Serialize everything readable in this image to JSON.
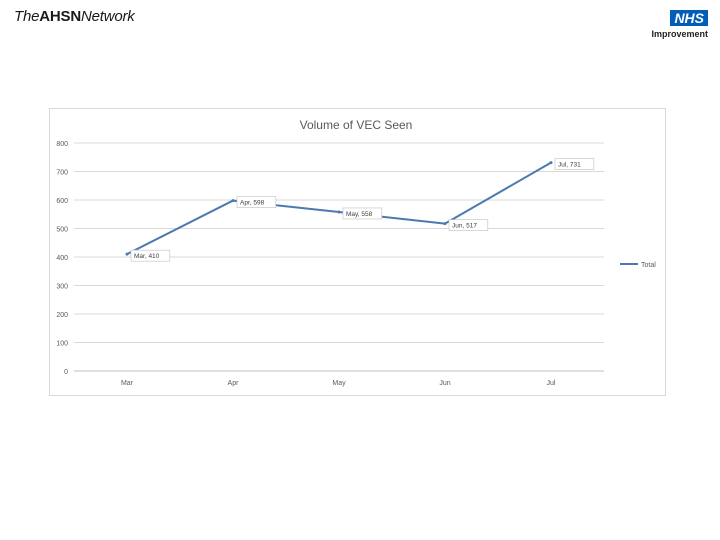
{
  "header": {
    "brand_the": "The",
    "brand_ahsn": "AHSN",
    "brand_network": "Network",
    "nhs_logo": "NHS",
    "nhs_sub": "Improvement"
  },
  "chart_data": {
    "type": "line",
    "title": "Volume of VEC Seen",
    "categories": [
      "Mar",
      "Apr",
      "May",
      "Jun",
      "Jul"
    ],
    "series": [
      {
        "name": "Total",
        "values": [
          410,
          598,
          558,
          517,
          731
        ],
        "color": "#4a7ab0"
      }
    ],
    "data_labels": [
      "Mar, 410",
      "Apr, 598",
      "May, 558",
      "Jun, 517",
      "Jul, 731"
    ],
    "ylim": [
      0,
      800
    ],
    "yticks": [
      0,
      100,
      200,
      300,
      400,
      500,
      600,
      700,
      800
    ],
    "grid": true,
    "legend": "right"
  }
}
